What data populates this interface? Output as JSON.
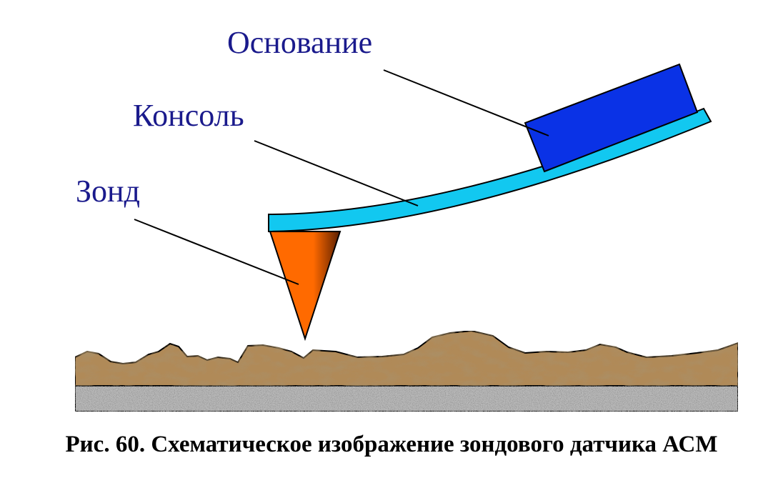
{
  "labels": {
    "base": "Основание",
    "cantilever": "Консоль",
    "probe": "Зонд"
  },
  "caption": "Рис. 60. Схематическое изображение зондового датчика АСМ",
  "colors": {
    "label_text": "#1a1a8c",
    "base_fill": "#0a32e6",
    "cantilever_fill": "#12c8f0",
    "probe_fill": "#ff6a00",
    "probe_shadow": "#5a1e00",
    "surface_fill": "#b08a58",
    "substrate_fill": "#b9b9b9",
    "lines": "#000000"
  }
}
